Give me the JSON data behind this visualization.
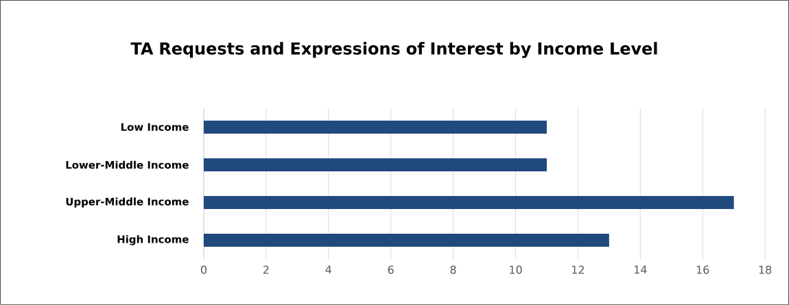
{
  "chart_data": {
    "type": "bar",
    "orientation": "horizontal",
    "title": "TA Requests and Expressions of Interest by Income Level",
    "categories": [
      "Low Income",
      "Lower-Middle Income",
      "Upper-Middle Income",
      "High Income"
    ],
    "values": [
      11,
      11,
      17,
      13
    ],
    "color": "#214a7c",
    "xlim": [
      0,
      18
    ],
    "xticks": [
      0,
      2,
      4,
      6,
      8,
      10,
      12,
      14,
      16,
      18
    ],
    "grid": "x"
  }
}
